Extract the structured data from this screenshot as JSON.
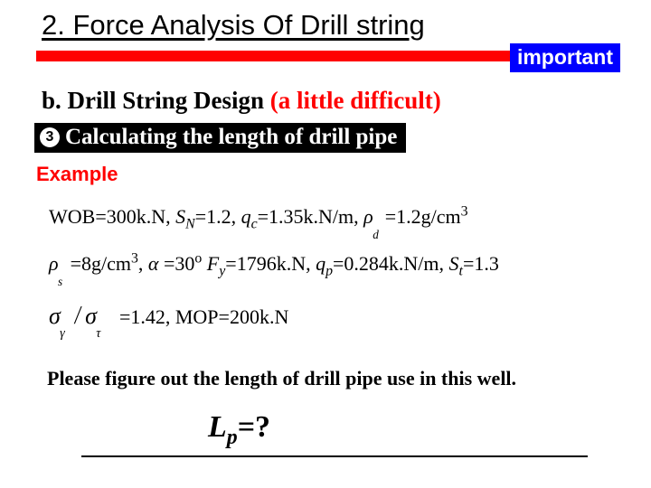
{
  "title": "2. Force Analysis Of Drill string",
  "important_label": "important",
  "colors": {
    "accent_bar": "#ff0000",
    "important_bg": "#0000ff",
    "important_text": "#ffffff",
    "step_bg": "#000000",
    "step_text": "#ffffff",
    "example_label": "#ff0000",
    "text": "#000000",
    "background": "#ffffff"
  },
  "subtitle": {
    "prefix": "b. Drill String Design ",
    "red_part": "(a little difficult)"
  },
  "step": {
    "number": "3",
    "text": "Calculating the length of drill pipe"
  },
  "example_label": "Example",
  "params": {
    "row1": {
      "wob_label": "WOB=",
      "wob_value": "300k.N,   ",
      "sn_label_html": "S",
      "sn_sub": "N",
      "sn_eq": "=1.2,   ",
      "qc_label_html": "q",
      "qc_sub": "c",
      "qc_eq": "=1.35k.N/m,      ",
      "rhod_sub": "d",
      "rhod_eq": "=1.2g/cm",
      "rhod_sup": "3"
    },
    "row2": {
      "rhos_sub": "s",
      "rhos_eq": "=8g/cm",
      "rhos_sup": "3",
      "gap": ",      ",
      "alpha_eq": "=30",
      "alpha_sup": "o",
      "fy_gap": "    ",
      "fy_label": "F",
      "fy_sub": "y",
      "fy_eq": "=1796k.N,  ",
      "qp_label": "q",
      "qp_sub": "p",
      "qp_eq": "=0.284k.N/m,  ",
      "st_label": "S",
      "st_sub": "t",
      "st_eq": "=1.3"
    },
    "row3": {
      "sigma_gamma_sub": "γ",
      "sigma_tau_sub": "τ",
      "ratio_eq": "=1.42,   ",
      "mop": "MOP=200k.N"
    }
  },
  "prompt": "Please figure out the length of drill pipe use in this well.",
  "answer": {
    "L": "L",
    "p": "p",
    "eqq": "=?"
  }
}
